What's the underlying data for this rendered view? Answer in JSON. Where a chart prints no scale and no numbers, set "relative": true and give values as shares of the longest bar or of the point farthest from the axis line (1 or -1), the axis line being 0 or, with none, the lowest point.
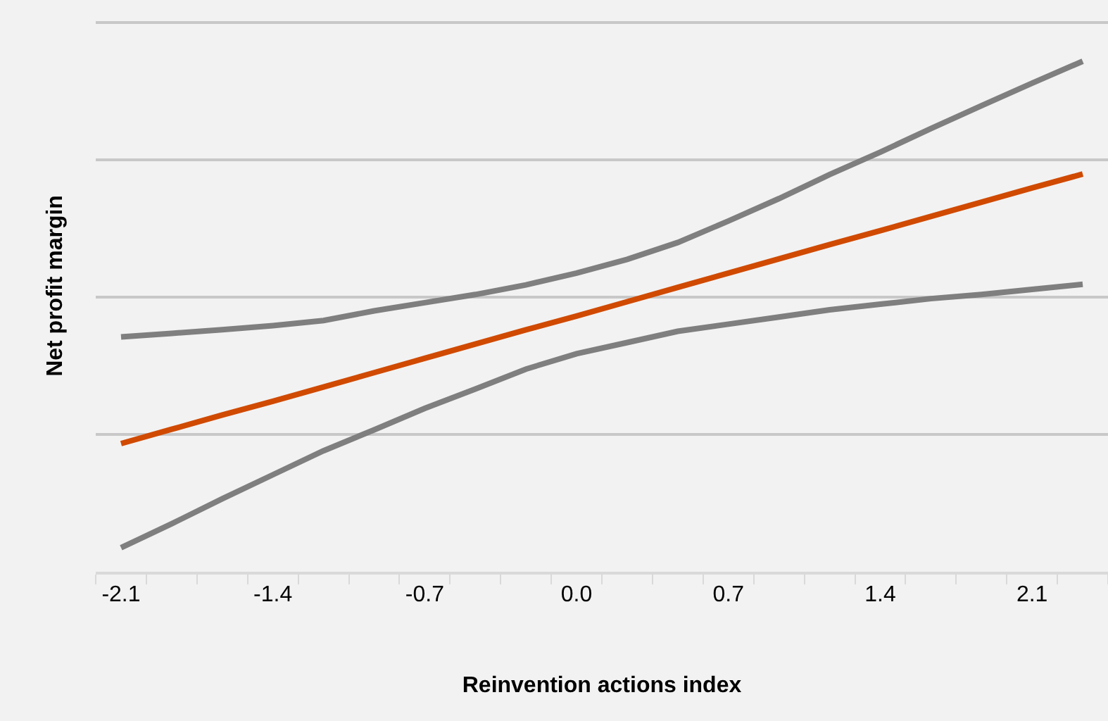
{
  "chart_data": {
    "type": "line",
    "relative": true,
    "xlabel": "Reinvention actions index",
    "ylabel": "Net profit margin",
    "categories": [
      "-2.1",
      null,
      null,
      "-1.4",
      null,
      null,
      "-0.7",
      null,
      null,
      "0.0",
      null,
      null,
      "0.7",
      null,
      null,
      "1.4",
      null,
      null,
      "2.1",
      null
    ],
    "series": [
      {
        "color": "#7f7f7f",
        "values": [
          0.46,
          0.467,
          0.474,
          0.482,
          0.492,
          0.511,
          0.527,
          0.543,
          0.562,
          0.585,
          0.612,
          0.645,
          0.687,
          0.731,
          0.778,
          0.822,
          0.868,
          0.913,
          0.957,
          1.0
        ]
      },
      {
        "color": "#7f7f7f",
        "values": [
          0.047,
          0.094,
          0.143,
          0.19,
          0.237,
          0.278,
          0.32,
          0.358,
          0.397,
          0.427,
          0.449,
          0.471,
          0.485,
          0.499,
          0.513,
          0.524,
          0.535,
          0.543,
          0.553,
          0.563
        ]
      },
      {
        "color": "#d04a02",
        "values": [
          0.251,
          0.279,
          0.307,
          0.334,
          0.362,
          0.39,
          0.418,
          0.446,
          0.474,
          0.501,
          0.529,
          0.557,
          0.585,
          0.613,
          0.641,
          0.668,
          0.696,
          0.724,
          0.752,
          0.779
        ]
      }
    ],
    "grid": "y",
    "marker": "none",
    "line_style": "solid"
  }
}
